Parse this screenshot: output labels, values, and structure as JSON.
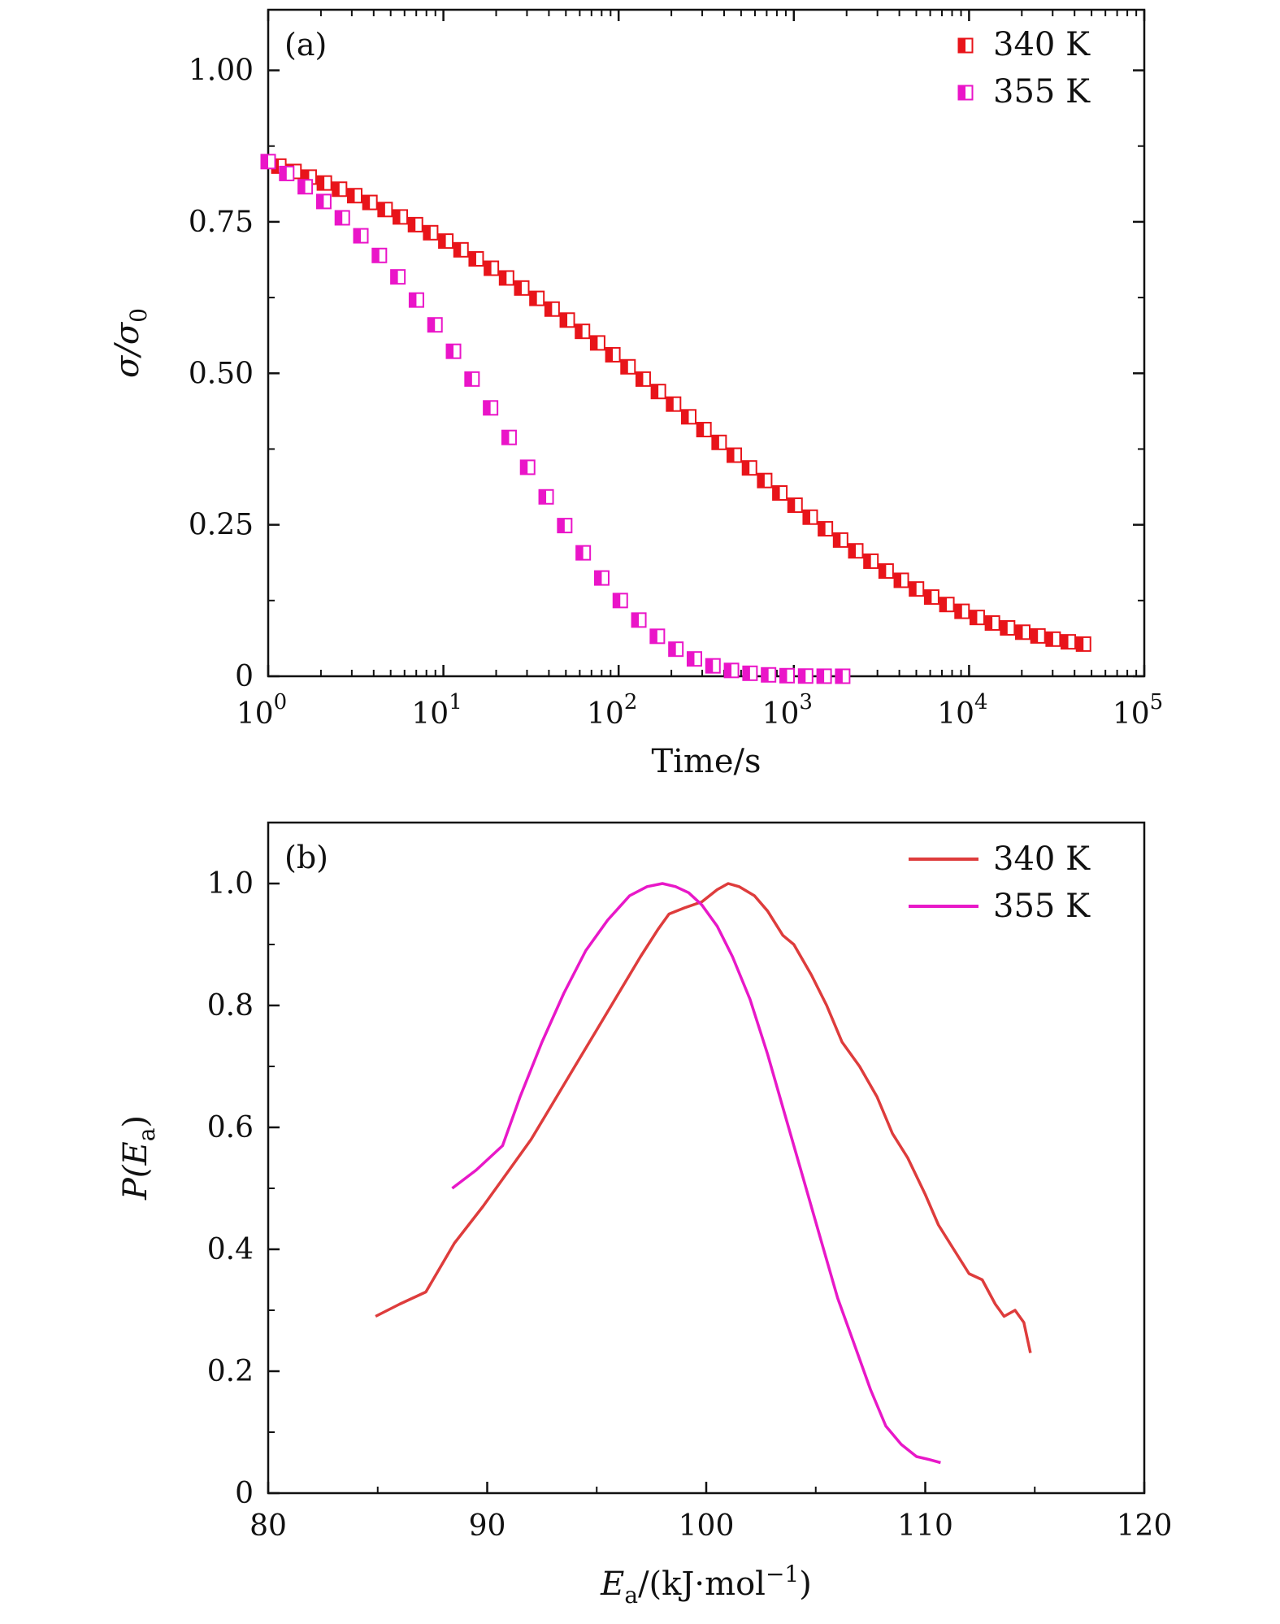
{
  "chart_data": [
    {
      "type": "scatter",
      "panel_label": "(a)",
      "xscale": "log",
      "xlabel": "Time/s",
      "ylabel": "σ/σ",
      "ylabel_sub": "0",
      "xlim": [
        1,
        100000
      ],
      "ylim": [
        0,
        1.1
      ],
      "xticks": [
        1,
        10,
        100,
        1000,
        10000,
        100000
      ],
      "xtick_bases": [
        "10",
        "10",
        "10",
        "10",
        "10",
        "10"
      ],
      "xtick_exps": [
        "0",
        "1",
        "2",
        "3",
        "4",
        "5"
      ],
      "yticks": [
        0,
        0.25,
        0.5,
        0.75,
        1.0
      ],
      "ytick_labels": [
        "0",
        "0.25",
        "0.50",
        "0.75",
        "1.00"
      ],
      "legend_position": "top-right",
      "series": [
        {
          "name": "340 K",
          "color": "#e8141a",
          "marker": "half-filled-square",
          "x_start": 1.15,
          "x_end": 45000,
          "count": 54,
          "model": {
            "type": "stretched-exp",
            "y0": 1.0,
            "A": 0.985,
            "tau": 350,
            "beta": 0.3
          }
        },
        {
          "name": "355 K",
          "color": "#ea15c8",
          "marker": "half-filled-square",
          "x_start": 1.0,
          "x_end": 1900,
          "count": 32,
          "model": {
            "type": "stretched-exp",
            "y0": 0.98,
            "A": 1.0,
            "tau": 27,
            "beta": 0.55
          }
        }
      ]
    },
    {
      "type": "line",
      "panel_label": "(b)",
      "xlabel_main": "E",
      "xlabel_sub": "a",
      "xlabel_rest": "/(kJ·mol",
      "xlabel_sup": "−1",
      "xlabel_close": ")",
      "ylabel_pre": "P(",
      "ylabel_main": "E",
      "ylabel_sub": "a",
      "ylabel_post": ")",
      "xlim": [
        80,
        120
      ],
      "ylim": [
        0,
        1.1
      ],
      "xticks": [
        80,
        90,
        100,
        110,
        120
      ],
      "xtick_labels": [
        "80",
        "90",
        "100",
        "110",
        "120"
      ],
      "yticks": [
        0,
        0.2,
        0.4,
        0.6,
        0.8,
        1.0
      ],
      "ytick_labels": [
        "0",
        "0.2",
        "0.4",
        "0.6",
        "0.8",
        "1.0"
      ],
      "legend_position": "top-right",
      "series": [
        {
          "name": "340 K",
          "color": "#de3c3c",
          "x": [
            84.9,
            86,
            87.2,
            88.5,
            89.8,
            91,
            92,
            93,
            94,
            95,
            96,
            97,
            97.8,
            98.3,
            99,
            99.8,
            100.5,
            101,
            101.5,
            102.2,
            102.8,
            103.5,
            104,
            104.8,
            105.5,
            106.2,
            107,
            107.8,
            108.5,
            109.2,
            110,
            110.6,
            111.3,
            112,
            112.6,
            113.2,
            113.6,
            114.1,
            114.5,
            114.8
          ],
          "y": [
            0.29,
            0.31,
            0.33,
            0.41,
            0.47,
            0.53,
            0.58,
            0.64,
            0.7,
            0.76,
            0.82,
            0.88,
            0.925,
            0.95,
            0.96,
            0.97,
            0.99,
            1.0,
            0.995,
            0.98,
            0.955,
            0.915,
            0.9,
            0.85,
            0.8,
            0.74,
            0.7,
            0.65,
            0.59,
            0.55,
            0.49,
            0.44,
            0.4,
            0.36,
            0.35,
            0.31,
            0.29,
            0.3,
            0.28,
            0.23
          ]
        },
        {
          "name": "355 K",
          "color": "#e818c8",
          "x": [
            88.4,
            89.5,
            90.7,
            91.5,
            92.5,
            93.5,
            94.5,
            95.5,
            96.5,
            97.3,
            98,
            98.6,
            99.2,
            99.8,
            100.5,
            101.2,
            102,
            102.8,
            103.6,
            104.4,
            105.2,
            106,
            106.8,
            107.5,
            108.2,
            108.9,
            109.6,
            110.2,
            110.7
          ],
          "y": [
            0.5,
            0.53,
            0.57,
            0.65,
            0.74,
            0.82,
            0.89,
            0.94,
            0.98,
            0.995,
            1.0,
            0.995,
            0.985,
            0.965,
            0.93,
            0.88,
            0.81,
            0.72,
            0.62,
            0.52,
            0.42,
            0.32,
            0.24,
            0.17,
            0.11,
            0.08,
            0.06,
            0.055,
            0.05
          ]
        }
      ]
    }
  ]
}
